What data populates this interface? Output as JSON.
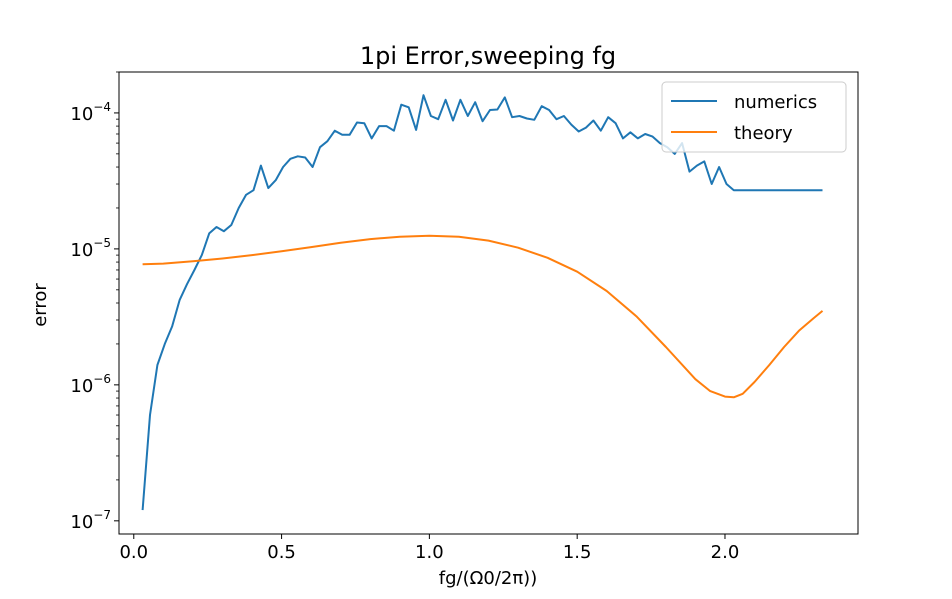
{
  "chart_data": {
    "type": "line",
    "title": "1pi Error,sweeping fg",
    "xlabel": "fg/(Ω0/2π))",
    "ylabel": "error",
    "xlim": [
      -0.05,
      2.45
    ],
    "ylim": [
      8e-08,
      0.0002
    ],
    "yscale": "log",
    "grid": false,
    "legend_position": "top-right",
    "x_ticks": [
      {
        "value": 0.0,
        "label": "0.0"
      },
      {
        "value": 0.5,
        "label": "0.5"
      },
      {
        "value": 1.0,
        "label": "1.0"
      },
      {
        "value": 1.5,
        "label": "1.5"
      },
      {
        "value": 2.0,
        "label": "2.0"
      }
    ],
    "y_ticks": [
      {
        "value": 1e-07,
        "base": "10",
        "exp": "−7"
      },
      {
        "value": 1e-06,
        "base": "10",
        "exp": "−6"
      },
      {
        "value": 1e-05,
        "base": "10",
        "exp": "−5"
      },
      {
        "value": 0.0001,
        "base": "10",
        "exp": "−4"
      }
    ],
    "series": [
      {
        "name": "numerics",
        "color": "#1f77b4",
        "x": [
          0.03,
          0.055,
          0.08,
          0.105,
          0.13,
          0.155,
          0.18,
          0.205,
          0.23,
          0.255,
          0.28,
          0.305,
          0.33,
          0.355,
          0.38,
          0.405,
          0.43,
          0.455,
          0.48,
          0.505,
          0.53,
          0.555,
          0.58,
          0.605,
          0.63,
          0.655,
          0.68,
          0.705,
          0.73,
          0.755,
          0.78,
          0.805,
          0.83,
          0.855,
          0.88,
          0.905,
          0.93,
          0.955,
          0.98,
          1.005,
          1.03,
          1.055,
          1.08,
          1.105,
          1.13,
          1.155,
          1.18,
          1.205,
          1.23,
          1.255,
          1.28,
          1.305,
          1.33,
          1.355,
          1.38,
          1.405,
          1.43,
          1.455,
          1.48,
          1.505,
          1.53,
          1.555,
          1.58,
          1.605,
          1.63,
          1.655,
          1.68,
          1.705,
          1.73,
          1.755,
          1.78,
          1.805,
          1.83,
          1.855,
          1.88,
          1.905,
          1.93,
          1.955,
          1.98,
          2.005,
          2.03,
          2.055,
          2.08,
          2.105,
          2.13,
          2.155,
          2.18,
          2.205,
          2.23,
          2.255,
          2.28,
          2.305,
          2.33
        ],
        "values": [
          1.2e-07,
          6e-07,
          1.4e-06,
          2e-06,
          2.7e-06,
          4.2e-06,
          5.5e-06,
          7e-06,
          9e-06,
          1.3e-05,
          1.45e-05,
          1.35e-05,
          1.5e-05,
          2e-05,
          2.5e-05,
          2.7e-05,
          4.1e-05,
          2.8e-05,
          3.2e-05,
          4e-05,
          4.6e-05,
          4.8e-05,
          4.7e-05,
          4e-05,
          5.6e-05,
          6.2e-05,
          7.4e-05,
          6.9e-05,
          6.9e-05,
          8.5e-05,
          8.4e-05,
          6.5e-05,
          8e-05,
          8e-05,
          7.4e-05,
          0.000115,
          0.00011,
          7.5e-05,
          0.000135,
          9.5e-05,
          9e-05,
          0.000125,
          8.8e-05,
          0.000125,
          9.5e-05,
          0.00012,
          8.7e-05,
          0.000105,
          0.000106,
          0.00013,
          9.3e-05,
          9.5e-05,
          9.1e-05,
          8.9e-05,
          0.000112,
          0.000105,
          9e-05,
          9.5e-05,
          8.2e-05,
          7.3e-05,
          7.8e-05,
          8.8e-05,
          7.4e-05,
          9.3e-05,
          8.4e-05,
          6.5e-05,
          7.2e-05,
          6.5e-05,
          7e-05,
          6.7e-05,
          6e-05,
          5.6e-05,
          5e-05,
          6e-05,
          3.7e-05,
          4.1e-05,
          4.4e-05,
          3e-05,
          4e-05,
          3e-05,
          2.7e-05,
          2.7e-05,
          2.7e-05,
          2.7e-05,
          2.7e-05,
          2.7e-05,
          2.7e-05,
          2.7e-05,
          2.7e-05,
          2.7e-05,
          2.7e-05,
          2.7e-05,
          2.7e-05
        ]
      },
      {
        "name": "theory",
        "color": "#ff7f0e",
        "x": [
          0.03,
          0.1,
          0.2,
          0.3,
          0.4,
          0.5,
          0.6,
          0.7,
          0.8,
          0.9,
          1.0,
          1.1,
          1.2,
          1.3,
          1.4,
          1.5,
          1.6,
          1.7,
          1.8,
          1.9,
          1.95,
          2.0,
          2.03,
          2.06,
          2.1,
          2.15,
          2.2,
          2.25,
          2.3,
          2.33
        ],
        "values": [
          7.7e-06,
          7.8e-06,
          8.1e-06,
          8.5e-06,
          9e-06,
          9.6e-06,
          1.03e-05,
          1.11e-05,
          1.18e-05,
          1.23e-05,
          1.25e-05,
          1.23e-05,
          1.15e-05,
          1.02e-05,
          8.6e-06,
          6.8e-06,
          4.9e-06,
          3.2e-06,
          1.9e-06,
          1.1e-06,
          9e-07,
          8.2e-07,
          8.1e-07,
          8.6e-07,
          1.05e-06,
          1.4e-06,
          1.9e-06,
          2.5e-06,
          3.1e-06,
          3.5e-06
        ]
      }
    ]
  }
}
